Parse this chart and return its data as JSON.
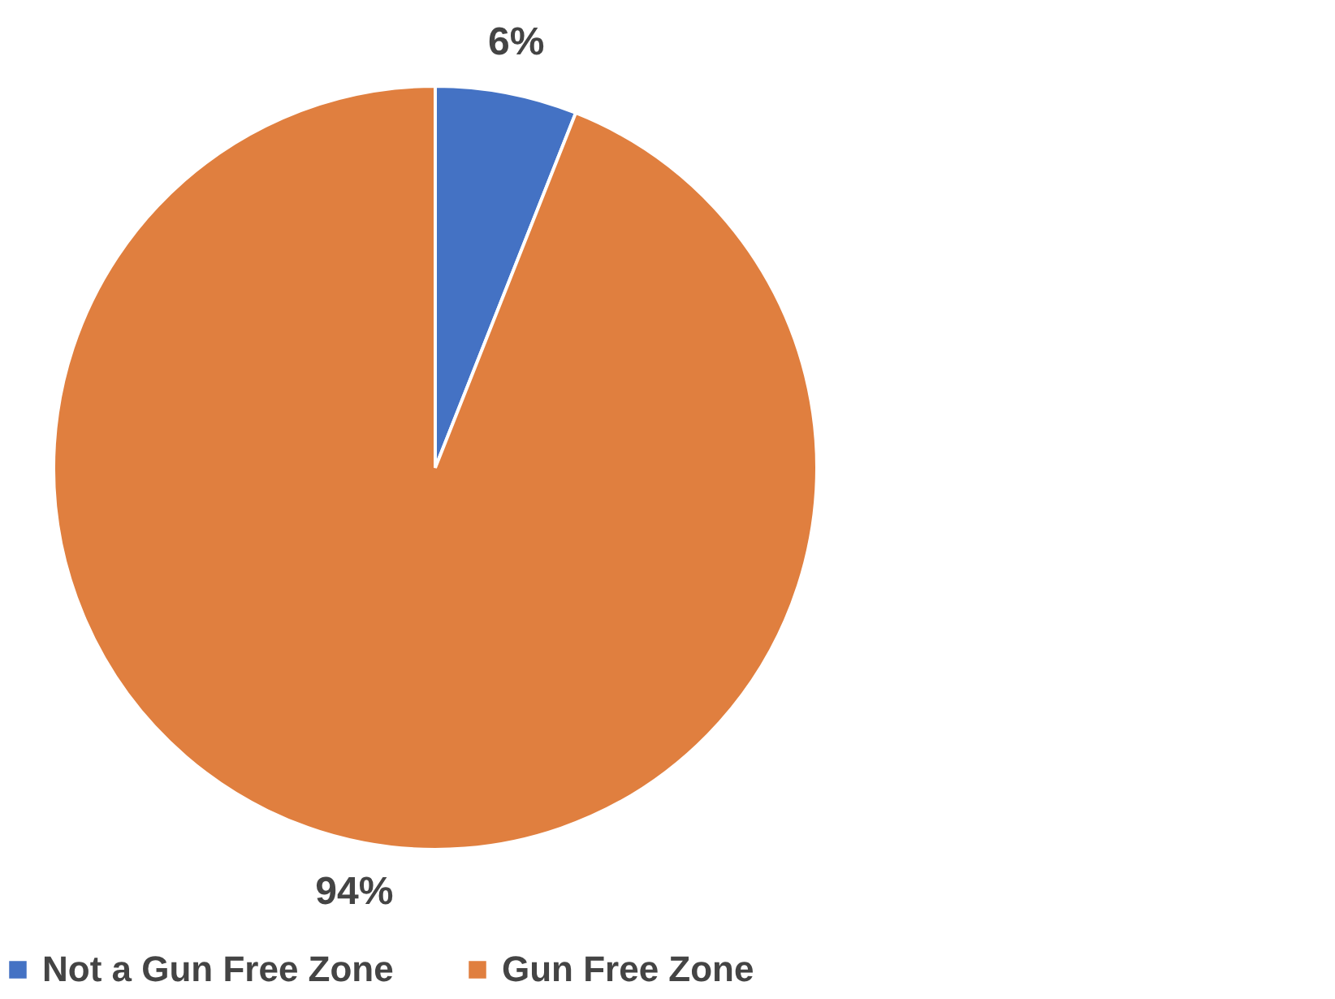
{
  "chart_data": {
    "type": "pie",
    "categories": [
      "Not a Gun Free Zone",
      "Gun Free Zone"
    ],
    "values": [
      6,
      94
    ],
    "colors": [
      "#4472c4",
      "#e07f3f"
    ],
    "value_labels": [
      "6%",
      "94%"
    ],
    "legend": "bottom"
  }
}
